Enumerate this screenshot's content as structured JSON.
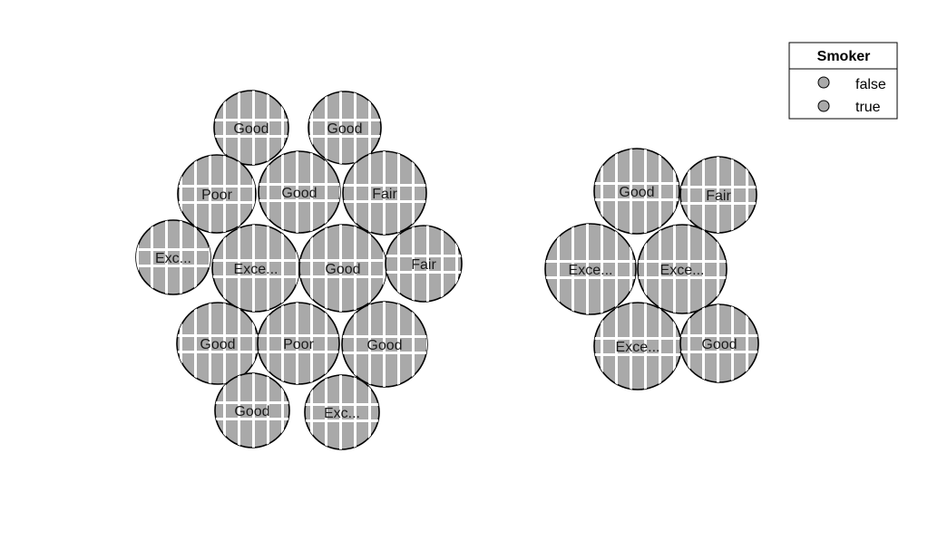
{
  "chart_data": {
    "type": "packed-bubble",
    "title": "",
    "legend": {
      "title": "Smoker",
      "placement": "top-right",
      "entries": [
        {
          "label": "false",
          "color": "#a9a9a9"
        },
        {
          "label": "true",
          "color": "#a9a9a9"
        }
      ]
    },
    "fill_color": "#a9a9a9",
    "pattern": "white vertical and horizontal stripes",
    "groups": [
      {
        "smoker": "false",
        "bubbles": [
          "Good",
          "Good",
          "Poor",
          "Good",
          "Fair",
          "Exc...",
          "Exce...",
          "Good",
          "Fair",
          "Good",
          "Poor",
          "Good",
          "Good",
          "Exc..."
        ]
      },
      {
        "smoker": "true",
        "bubbles": [
          "Good",
          "Fair",
          "Exce...",
          "Exce...",
          "Exce...",
          "Good"
        ]
      }
    ]
  }
}
